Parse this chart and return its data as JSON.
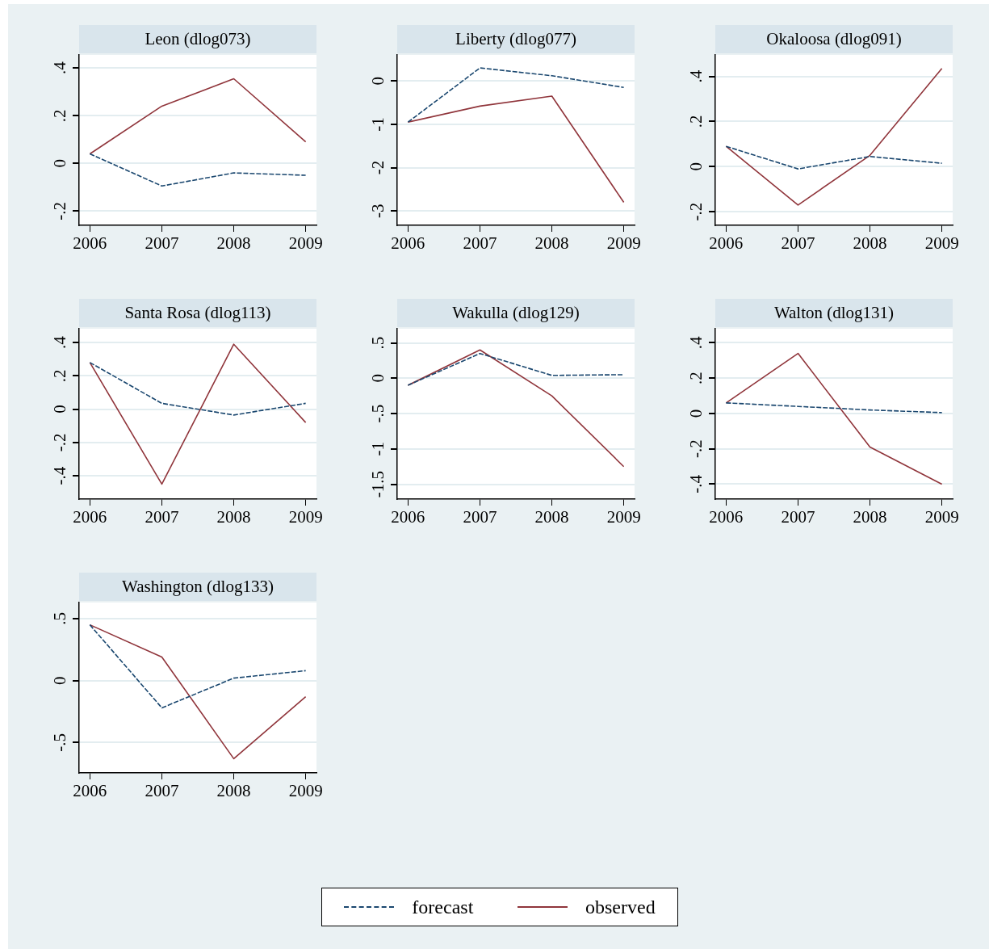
{
  "chart_data": [
    {
      "type": "line",
      "title": "Leon (dlog073)",
      "x": [
        2006,
        2007,
        2008,
        2009
      ],
      "xlim": [
        2005.85,
        2009.15
      ],
      "xticks": [
        2006,
        2007,
        2008,
        2009
      ],
      "ylim": [
        -0.26,
        0.455
      ],
      "yticks": [
        {
          "value": -0.2,
          "label": "-.2"
        },
        0,
        {
          "value": 0.2,
          "label": ".2"
        },
        {
          "value": 0.4,
          "label": ".4"
        }
      ],
      "grid": "y",
      "legend": "bottom",
      "series": [
        {
          "name": "forecast",
          "color": "#1a476f",
          "line_style": "dashed",
          "values": [
            0.04,
            -0.095,
            -0.04,
            -0.05
          ]
        },
        {
          "name": "observed",
          "color": "#90353b",
          "line_style": "solid",
          "values": [
            0.04,
            0.24,
            0.355,
            0.09
          ]
        }
      ]
    },
    {
      "type": "line",
      "title": "Liberty (dlog077)",
      "x": [
        2006,
        2007,
        2008,
        2009
      ],
      "xlim": [
        2005.85,
        2009.15
      ],
      "xticks": [
        2006,
        2007,
        2008,
        2009
      ],
      "ylim": [
        -3.33,
        0.6
      ],
      "yticks": [
        -3,
        -2,
        -1,
        0
      ],
      "grid": "y",
      "series": [
        {
          "color": "#1a476f",
          "line_style": "dashed",
          "values": [
            -0.95,
            0.3,
            0.12,
            -0.15
          ]
        },
        {
          "color": "#90353b",
          "line_style": "solid",
          "values": [
            -0.95,
            -0.58,
            -0.35,
            -2.8
          ]
        }
      ]
    },
    {
      "type": "line",
      "title": "Okaloosa (dlog091)",
      "x": [
        2006,
        2007,
        2008,
        2009
      ],
      "xlim": [
        2005.85,
        2009.15
      ],
      "xticks": [
        2006,
        2007,
        2008,
        2009
      ],
      "ylim": [
        -0.26,
        0.495
      ],
      "yticks": [
        {
          "value": -0.2,
          "label": "-.2"
        },
        0,
        {
          "value": 0.2,
          "label": ".2"
        },
        {
          "value": 0.4,
          "label": ".4"
        }
      ],
      "grid": "y",
      "series": [
        {
          "color": "#1a476f",
          "line_style": "dashed",
          "values": [
            0.09,
            -0.01,
            0.045,
            0.015
          ]
        },
        {
          "color": "#90353b",
          "line_style": "solid",
          "values": [
            0.09,
            -0.17,
            0.05,
            0.435
          ]
        }
      ]
    },
    {
      "type": "line",
      "title": "Santa Rosa (dlog113)",
      "x": [
        2006,
        2007,
        2008,
        2009
      ],
      "xlim": [
        2005.85,
        2009.15
      ],
      "xticks": [
        2006,
        2007,
        2008,
        2009
      ],
      "ylim": [
        -0.54,
        0.483
      ],
      "yticks": [
        {
          "value": -0.4,
          "label": "-.4"
        },
        {
          "value": -0.2,
          "label": "-.2"
        },
        0,
        {
          "value": 0.2,
          "label": ".2"
        },
        {
          "value": 0.4,
          "label": ".4"
        }
      ],
      "grid": "y",
      "series": [
        {
          "color": "#1a476f",
          "line_style": "dashed",
          "values": [
            0.28,
            0.035,
            -0.035,
            0.035
          ]
        },
        {
          "color": "#90353b",
          "line_style": "solid",
          "values": [
            0.28,
            -0.45,
            0.39,
            -0.08
          ]
        }
      ]
    },
    {
      "type": "line",
      "title": "Wakulla (dlog129)",
      "x": [
        2006,
        2007,
        2008,
        2009
      ],
      "xlim": [
        2005.85,
        2009.15
      ],
      "xticks": [
        2006,
        2007,
        2008,
        2009
      ],
      "ylim": [
        -1.71,
        0.7
      ],
      "yticks": [
        {
          "value": -1.5,
          "label": "-1.5"
        },
        -1,
        {
          "value": -0.5,
          "label": "-.5"
        },
        0,
        {
          "value": 0.5,
          "label": ".5"
        }
      ],
      "grid": "y",
      "series": [
        {
          "color": "#1a476f",
          "line_style": "dashed",
          "values": [
            -0.1,
            0.35,
            0.04,
            0.05
          ]
        },
        {
          "color": "#90353b",
          "line_style": "solid",
          "values": [
            -0.1,
            0.4,
            -0.25,
            -1.25
          ]
        }
      ]
    },
    {
      "type": "line",
      "title": "Walton (dlog131)",
      "x": [
        2006,
        2007,
        2008,
        2009
      ],
      "xlim": [
        2005.85,
        2009.15
      ],
      "xticks": [
        2006,
        2007,
        2008,
        2009
      ],
      "ylim": [
        -0.485,
        0.48
      ],
      "yticks": [
        {
          "value": -0.4,
          "label": "-.4"
        },
        {
          "value": -0.2,
          "label": "-.2"
        },
        0,
        {
          "value": 0.2,
          "label": ".2"
        },
        {
          "value": 0.4,
          "label": ".4"
        }
      ],
      "grid": "y",
      "series": [
        {
          "color": "#1a476f",
          "line_style": "dashed",
          "values": [
            0.06,
            0.04,
            0.02,
            0.005
          ]
        },
        {
          "color": "#90353b",
          "line_style": "solid",
          "values": [
            0.06,
            0.34,
            -0.19,
            -0.4
          ]
        }
      ]
    },
    {
      "type": "line",
      "title": "Washington (dlog133)",
      "x": [
        2006,
        2007,
        2008,
        2009
      ],
      "xlim": [
        2005.85,
        2009.15
      ],
      "xticks": [
        2006,
        2007,
        2008,
        2009
      ],
      "ylim": [
        -0.745,
        0.63
      ],
      "yticks": [
        {
          "value": -0.5,
          "label": "-.5"
        },
        0,
        {
          "value": 0.5,
          "label": ".5"
        }
      ],
      "grid": "y",
      "series": [
        {
          "color": "#1a476f",
          "line_style": "dashed",
          "values": [
            0.45,
            -0.22,
            0.02,
            0.08
          ]
        },
        {
          "color": "#90353b",
          "line_style": "solid",
          "values": [
            0.45,
            0.19,
            -0.63,
            -0.13
          ]
        }
      ]
    }
  ]
}
